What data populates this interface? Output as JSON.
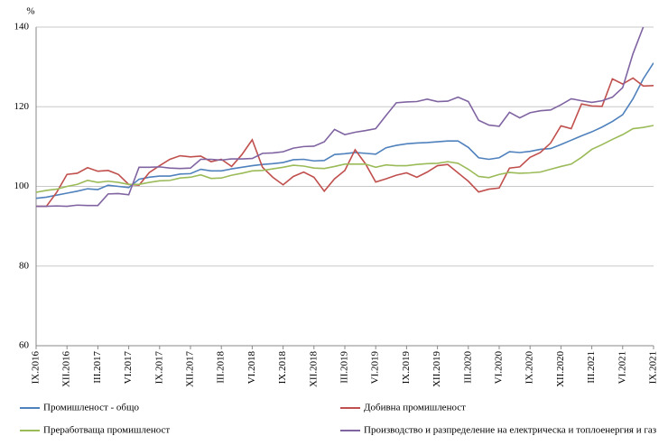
{
  "chart_data": {
    "type": "line",
    "y_label": "%",
    "categories": [
      "IX.2016",
      null,
      null,
      "XII.2016",
      null,
      null,
      "III.2017",
      null,
      null,
      "VI.2017",
      null,
      null,
      "IX.2017",
      null,
      null,
      "XII.2017",
      null,
      null,
      "III.2018",
      null,
      null,
      "VI.2018",
      null,
      null,
      "IX.2018",
      null,
      null,
      "XII.2018",
      null,
      null,
      "III.2019",
      null,
      null,
      "VI.2019",
      null,
      null,
      "IX.2019",
      null,
      null,
      "XII.2019",
      null,
      null,
      "III.2020",
      null,
      null,
      "VI.2020",
      null,
      null,
      "IX.2020",
      null,
      null,
      "XII.2020",
      null,
      null,
      "III.2021",
      null,
      null,
      "VI.2021",
      null,
      null,
      "IX.2021"
    ],
    "series": [
      {
        "name": "Промишленост - общо",
        "color": "#4f81bd",
        "values": [
          97,
          97.3,
          97.8,
          98.3,
          98.8,
          99.4,
          99.2,
          100.3,
          100,
          99.7,
          101.8,
          102.3,
          102.6,
          102.6,
          103.1,
          103.2,
          104.3,
          103.9,
          103.9,
          104.4,
          104.8,
          105.2,
          105.5,
          105.7,
          106,
          106.7,
          106.8,
          106.4,
          106.5,
          108,
          108.2,
          108.5,
          108.3,
          108.1,
          109.7,
          110.3,
          110.7,
          110.9,
          111,
          111.2,
          111.4,
          111.4,
          109.8,
          107.2,
          106.8,
          107.2,
          108.7,
          108.5,
          108.8,
          109.3,
          109.5,
          110.5,
          111.6,
          112.7,
          113.7,
          114.9,
          116.3,
          118,
          122,
          127,
          131
        ]
      },
      {
        "name": "Добивна промишленост",
        "color": "#c0504d",
        "values": [
          95,
          95,
          98.5,
          103,
          103.3,
          104.7,
          103.8,
          104,
          103,
          100.5,
          100.3,
          103.5,
          105.2,
          106.8,
          107.7,
          107.4,
          107.6,
          106.2,
          106.8,
          105,
          108,
          111.7,
          104.8,
          102.3,
          100.4,
          102.5,
          103.6,
          102.3,
          98.8,
          101.9,
          104,
          109.2,
          105.7,
          101.1,
          101.9,
          102.8,
          103.4,
          102.3,
          103.6,
          105.2,
          105.5,
          103.4,
          101.3,
          98.6,
          99.3,
          99.6,
          104.6,
          104.9,
          107.3,
          108.5,
          110.9,
          115.2,
          114.5,
          120.7,
          120.2,
          120.1,
          127,
          125.7,
          127.2,
          125.2,
          125.3
        ]
      },
      {
        "name": "Преработваща промишленост",
        "color": "#9bbb59",
        "values": [
          98.5,
          99,
          99.3,
          100,
          100.5,
          101.5,
          101,
          101.3,
          101,
          100.5,
          100.5,
          101,
          101.4,
          101.5,
          102.1,
          102.3,
          102.9,
          102,
          102.1,
          102.8,
          103.3,
          103.9,
          104,
          104.4,
          104.8,
          105.3,
          105.1,
          104.6,
          104.5,
          105,
          105.6,
          105.6,
          105.6,
          104.8,
          105.4,
          105.2,
          105.2,
          105.5,
          105.7,
          105.8,
          106.2,
          105.8,
          104.3,
          102.5,
          102.2,
          103,
          103.5,
          103.3,
          103.4,
          103.6,
          104.3,
          105,
          105.6,
          107.3,
          109.3,
          110.5,
          111.8,
          113,
          114.5,
          114.8,
          115.3
        ]
      },
      {
        "name": "Производство и разпределение на електрическа и топлоенергия  и газ",
        "color": "#8064a2",
        "values": [
          95,
          95,
          95.1,
          95,
          95.3,
          95.2,
          95.2,
          98.1,
          98.2,
          97.9,
          104.8,
          104.8,
          104.9,
          104.6,
          104.5,
          104.6,
          106.8,
          106.8,
          106.6,
          106.9,
          106.9,
          107,
          108.3,
          108.4,
          108.7,
          109.6,
          110,
          110.1,
          111.2,
          114.3,
          113,
          113.6,
          114,
          114.5,
          117.8,
          121,
          121.2,
          121.3,
          121.9,
          121.3,
          121.4,
          122.4,
          121.3,
          116.6,
          115.4,
          115.1,
          118.6,
          117.2,
          118.5,
          119,
          119.2,
          120.5,
          122,
          121.5,
          121.1,
          121.5,
          122.4,
          124.8,
          133.3,
          140,
          null
        ]
      }
    ],
    "ylim": [
      60,
      140
    ],
    "yticks": [
      60,
      80,
      100,
      120,
      140
    ],
    "grid": true
  }
}
